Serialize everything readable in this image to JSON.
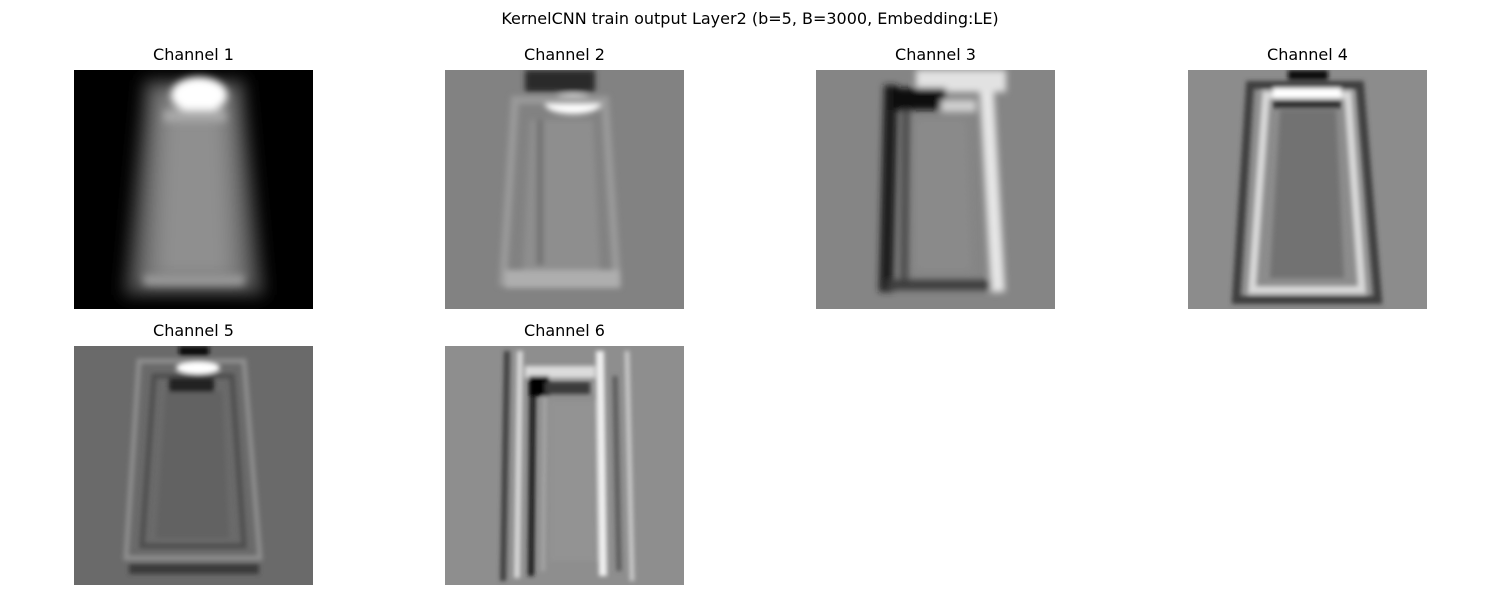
{
  "figure": {
    "title": "KernelCNN train output Layer2 (b=5, B=3000, Embedding:LE)"
  },
  "panels": [
    {
      "title": "Channel 1",
      "background": "#000000"
    },
    {
      "title": "Channel 2",
      "background": "#828282"
    },
    {
      "title": "Channel 3",
      "background": "#858585"
    },
    {
      "title": "Channel 4",
      "background": "#8c8c8c"
    },
    {
      "title": "Channel 5",
      "background": "#6a6a6a"
    },
    {
      "title": "Channel 6",
      "background": "#8e8e8e"
    }
  ]
}
